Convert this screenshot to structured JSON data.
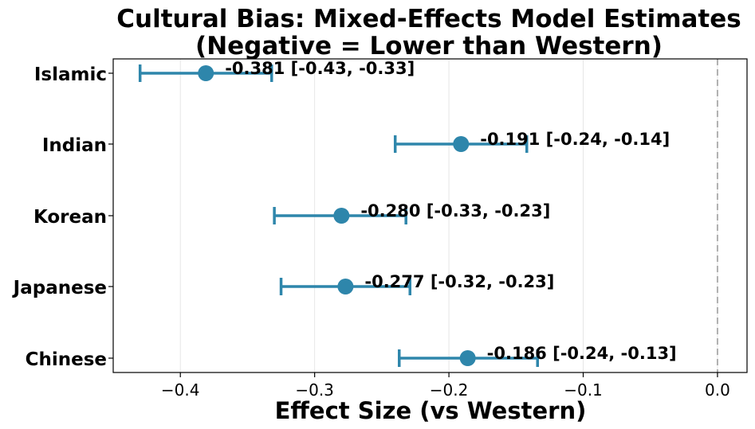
{
  "chart_data": {
    "type": "forest",
    "title_line1": "Cultural Bias: Mixed-Effects Model Estimates",
    "title_line2": "(Negative = Lower than Western)",
    "xlabel": "Effect Size (vs Western)",
    "xlim": [
      -0.45,
      0.022
    ],
    "xticks": [
      -0.4,
      -0.3,
      -0.2,
      -0.1,
      0.0
    ],
    "xtick_labels": [
      "−0.4",
      "−0.3",
      "−0.2",
      "−0.1",
      "0.0"
    ],
    "reference_line": 0.0,
    "grid": "x",
    "color": "#2e86ab",
    "categories": [
      "Islamic",
      "Indian",
      "Korean",
      "Japanese",
      "Chinese"
    ],
    "estimates": [
      -0.381,
      -0.191,
      -0.28,
      -0.277,
      -0.186
    ],
    "ci_lower": [
      -0.43,
      -0.24,
      -0.33,
      -0.325,
      -0.237
    ],
    "ci_upper": [
      -0.332,
      -0.142,
      -0.232,
      -0.229,
      -0.134
    ],
    "labels": [
      "-0.381 [-0.43, -0.33]",
      "-0.191 [-0.24, -0.14]",
      "-0.280 [-0.33, -0.23]",
      "-0.277 [-0.32, -0.23]",
      "-0.186 [-0.24, -0.13]"
    ]
  }
}
